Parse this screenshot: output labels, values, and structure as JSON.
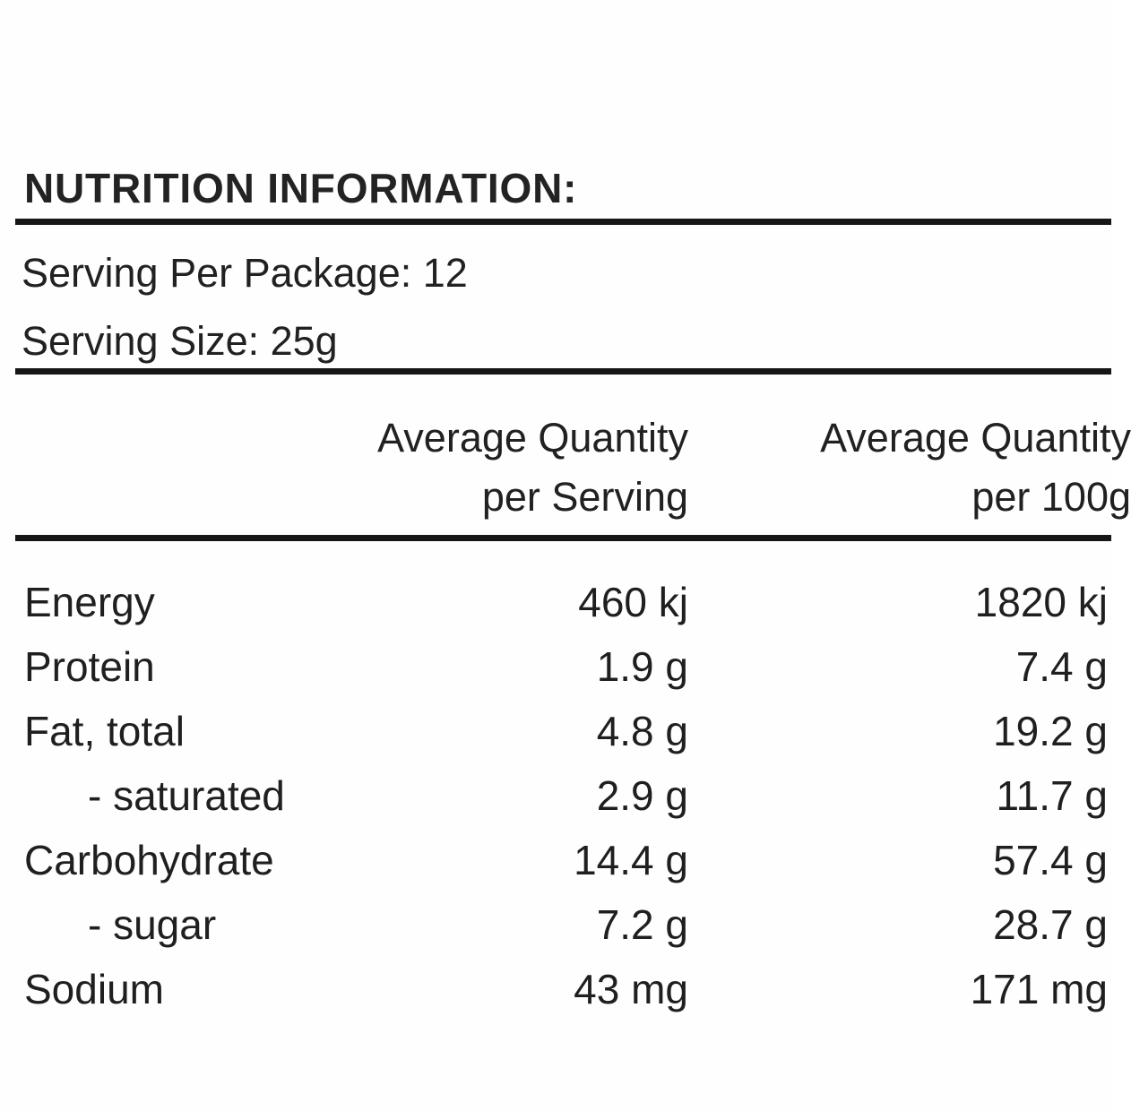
{
  "label": {
    "title": "NUTRITION INFORMATION:",
    "serving_per_package": "Serving Per Package: 12",
    "serving_size": "Serving Size: 25g"
  },
  "table": {
    "columns": [
      {
        "line1": "Average Quantity",
        "line2": "per Serving"
      },
      {
        "line1": "Average Quantity",
        "line2": "per 100g"
      }
    ],
    "rows": [
      {
        "label": "Energy",
        "per_serving": "460 kj",
        "per_100g": "1820 kj"
      },
      {
        "label": "Protein",
        "per_serving": "1.9 g",
        "per_100g": "7.4 g"
      },
      {
        "label": "Fat, total",
        "per_serving": "4.8 g",
        "per_100g": "19.2 g"
      },
      {
        "label": "- saturated",
        "per_serving": "2.9 g",
        "per_100g": "11.7 g"
      },
      {
        "label": "Carbohydrate",
        "per_serving": "14.4 g",
        "per_100g": "57.4 g"
      },
      {
        "label": "- sugar",
        "per_serving": "7.2 g",
        "per_100g": "28.7 g"
      },
      {
        "label": "Sodium",
        "per_serving": "43 mg",
        "per_100g": "171 mg"
      }
    ]
  },
  "colors": {
    "text": "#1f1f1f",
    "rule": "#161616",
    "background": "#fefefe"
  }
}
